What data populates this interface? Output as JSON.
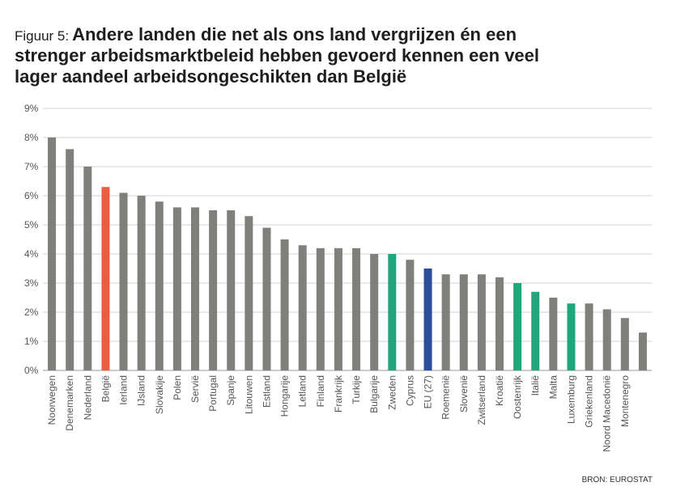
{
  "chart_data": {
    "type": "bar",
    "title_prefix": "Figuur 5:",
    "title": [
      "Andere landen die net als ons land vergrijzen én een",
      "strenger arbeidsmarktbeleid hebben gevoerd kennen een veel",
      "lager aandeel arbeidsongeschikten dan België"
    ],
    "source": "BRON: EUROSTAT",
    "categories": [
      "Noorwegen",
      "Denemarken",
      "Nederland",
      "België",
      "Ierland",
      "IJsland",
      "Slovakije",
      "Polen",
      "Servië",
      "Portugal",
      "Spanje",
      "Litouwen",
      "Estland",
      "Hongarije",
      "Letland",
      "Finland",
      "Frankrijk",
      "Turkije",
      "Bulgarije",
      "Zweden",
      "Cyprus",
      "EU (27)",
      "Roemenië",
      "Slovenië",
      "Zwitserland",
      "Kroatië",
      "Oostenrijk",
      "Italië",
      "Malta",
      "Luxemburg",
      "Griekenland",
      "Noord Macedonië",
      "Montenegro",
      null
    ],
    "values": [
      8.0,
      7.6,
      7.0,
      6.3,
      6.1,
      6.0,
      5.8,
      5.6,
      5.6,
      5.5,
      5.5,
      5.3,
      4.9,
      4.5,
      4.3,
      4.2,
      4.2,
      4.2,
      4.0,
      4.0,
      3.8,
      3.5,
      3.3,
      3.3,
      3.3,
      3.2,
      3.0,
      2.7,
      2.5,
      2.3,
      2.3,
      2.1,
      1.8,
      1.3
    ],
    "colors": [
      "#7f7f7b",
      "#7f7f7b",
      "#7f7f7b",
      "#ef5b3f",
      "#7f7f7b",
      "#7f7f7b",
      "#7f7f7b",
      "#7f7f7b",
      "#7f7f7b",
      "#7f7f7b",
      "#7f7f7b",
      "#7f7f7b",
      "#7f7f7b",
      "#7f7f7b",
      "#7f7f7b",
      "#7f7f7b",
      "#7f7f7b",
      "#7f7f7b",
      "#7f7f7b",
      "#1fa67a",
      "#7f7f7b",
      "#2b4e9b",
      "#7f7f7b",
      "#7f7f7b",
      "#7f7f7b",
      "#7f7f7b",
      "#1fa67a",
      "#1fa67a",
      "#7f7f7b",
      "#1fa67a",
      "#7f7f7b",
      "#7f7f7b",
      "#7f7f7b",
      "#7f7f7b"
    ],
    "ylim": [
      0,
      9
    ],
    "yticks": [
      {
        "value": 0,
        "label": "0%"
      },
      {
        "value": 1,
        "label": "1%"
      },
      {
        "value": 2,
        "label": "2%"
      },
      {
        "value": 3,
        "label": "3%"
      },
      {
        "value": 4,
        "label": "4%"
      },
      {
        "value": 5,
        "label": "5%"
      },
      {
        "value": 6,
        "label": "6%"
      },
      {
        "value": 7,
        "label": "7%"
      },
      {
        "value": 8,
        "label": "8%"
      },
      {
        "value": 9,
        "label": "9%"
      }
    ],
    "grid": true
  }
}
